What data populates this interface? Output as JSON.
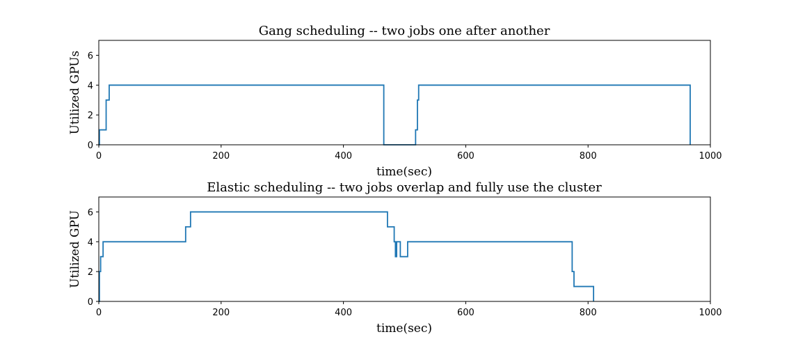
{
  "chart_data": [
    {
      "type": "line",
      "step": true,
      "title": "Gang scheduling -- two jobs one after another",
      "xlabel": "time(sec)",
      "ylabel": "Utilized GPUs",
      "xlim": [
        0,
        1000
      ],
      "ylim": [
        0,
        7
      ],
      "xticks": [
        0,
        200,
        400,
        600,
        800,
        1000
      ],
      "yticks": [
        0,
        2,
        4,
        6
      ],
      "grid": false,
      "color": "#1f77b4",
      "series": [
        {
          "x": [
            0,
            1,
            12,
            14,
            17,
            465,
            466,
            518,
            520,
            521,
            523,
            966,
            967
          ],
          "y": [
            0,
            1,
            3,
            3,
            4,
            4,
            0,
            1,
            1,
            3,
            4,
            4,
            0
          ]
        }
      ]
    },
    {
      "type": "line",
      "step": true,
      "title": "Elastic scheduling -- two jobs overlap and fully use the cluster",
      "xlabel": "time(sec)",
      "ylabel": "Utilized GPU",
      "xlim": [
        0,
        1000
      ],
      "ylim": [
        0,
        7
      ],
      "xticks": [
        0,
        200,
        400,
        600,
        800,
        1000
      ],
      "yticks": [
        0,
        2,
        4,
        6
      ],
      "grid": false,
      "color": "#1f77b4",
      "series": [
        {
          "x": [
            0,
            1,
            3,
            7,
            142,
            150,
            472,
            483,
            485,
            487,
            493,
            497,
            505,
            774,
            777,
            780,
            808,
            809
          ],
          "y": [
            0,
            2,
            3,
            4,
            5,
            6,
            5,
            4,
            3,
            4,
            3,
            3,
            4,
            2,
            1,
            1,
            1,
            0
          ]
        }
      ]
    }
  ]
}
